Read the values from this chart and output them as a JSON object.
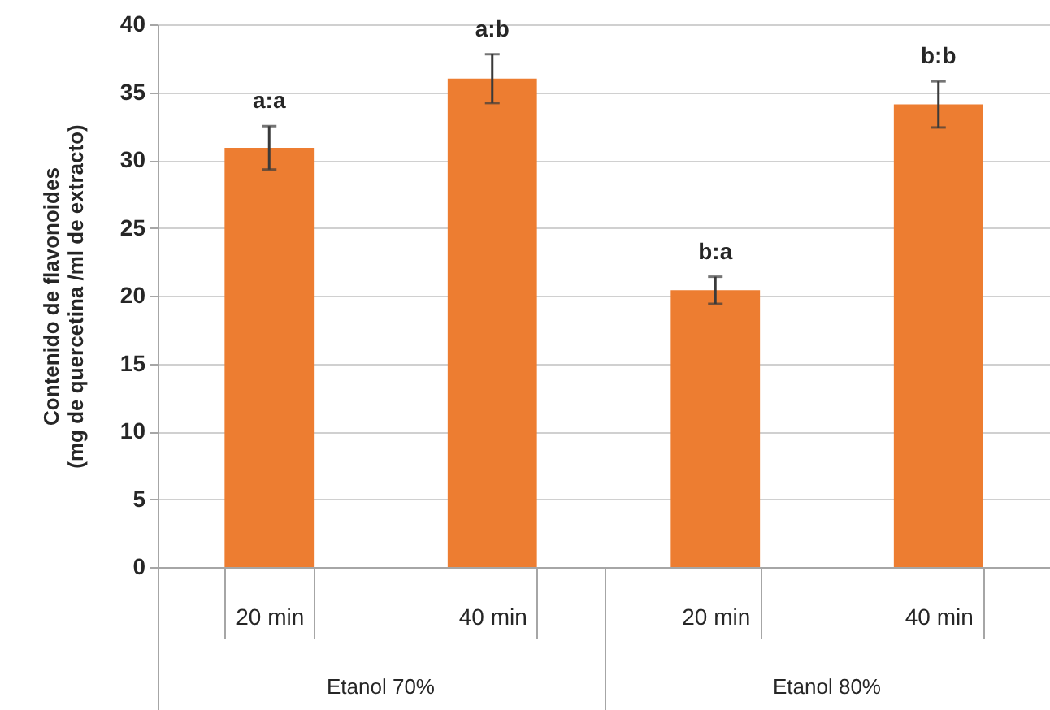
{
  "chart_data": {
    "type": "bar",
    "ylabel": "Contenido de flavonoides\n(mg de quercetina /ml de extracto)",
    "categories": [
      "20 min",
      "40 min",
      "20 min",
      "40 min"
    ],
    "values": [
      30.9,
      36.0,
      20.4,
      34.1
    ],
    "errors": [
      1.6,
      1.8,
      1.0,
      1.7
    ],
    "value_labels": [
      "a:a",
      "a:b",
      "b:a",
      "b:b"
    ],
    "annotations": [
      "Etanol 70%",
      "Etanol 80%"
    ],
    "color": "#ed7d31",
    "ylim": [
      0,
      40
    ],
    "yticks": [
      0,
      5,
      10,
      15,
      20,
      25,
      30,
      35,
      40
    ],
    "grid": "y"
  }
}
